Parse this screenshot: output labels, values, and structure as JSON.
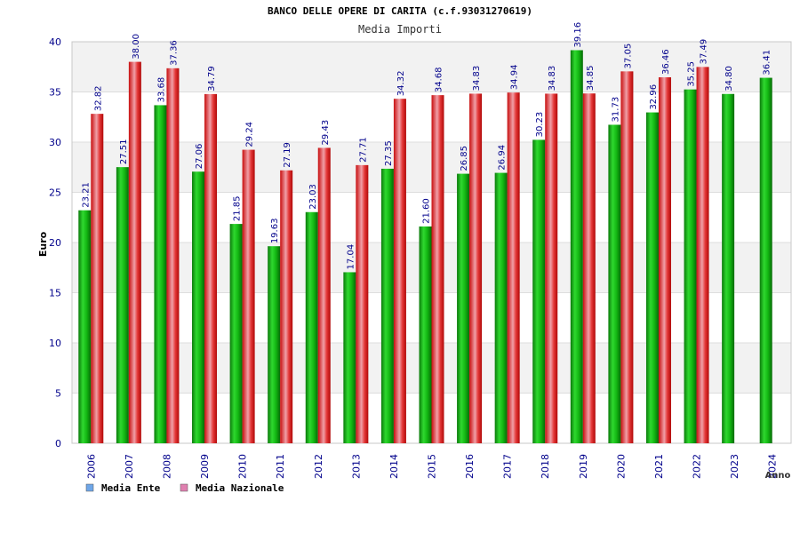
{
  "chart_data": {
    "type": "bar",
    "title": "BANCO DELLE OPERE DI CARITA (c.f.93031270619)",
    "subtitle": "Media Importi",
    "xlabel": "Anno",
    "ylabel": "Euro",
    "ylim": [
      0,
      40
    ],
    "yticks": [
      0,
      5,
      10,
      15,
      20,
      25,
      30,
      35,
      40
    ],
    "categories": [
      "2006",
      "2007",
      "2008",
      "2009",
      "2010",
      "2011",
      "2012",
      "2013",
      "2014",
      "2015",
      "2016",
      "2017",
      "2018",
      "2019",
      "2020",
      "2021",
      "2022",
      "2023",
      "2024"
    ],
    "series": [
      {
        "name": "Media Ente",
        "values": [
          23.21,
          27.51,
          33.68,
          27.06,
          21.85,
          19.63,
          23.03,
          17.04,
          27.35,
          21.6,
          26.85,
          26.94,
          30.23,
          39.16,
          31.73,
          32.96,
          35.25,
          34.8,
          36.41
        ],
        "labels": [
          "23.21",
          "27.51",
          "33.68",
          "27.06",
          "21.85",
          "19.63",
          "23.03",
          "17.04",
          "27.35",
          "21.60",
          "26.85",
          "26.94",
          "30.23",
          "39.16",
          "31.73",
          "32.96",
          "35.25",
          "34.80",
          "36.41"
        ]
      },
      {
        "name": "Media Nazionale",
        "values": [
          32.82,
          38.0,
          37.36,
          34.79,
          29.24,
          27.19,
          29.43,
          27.71,
          34.32,
          34.68,
          34.83,
          34.94,
          34.83,
          34.85,
          37.05,
          36.46,
          37.49,
          null,
          null
        ],
        "labels": [
          "32.82",
          "38.00",
          "37.36",
          "34.79",
          "29.24",
          "27.19",
          "29.43",
          "27.71",
          "34.32",
          "34.68",
          "34.83",
          "34.94",
          "34.83",
          "34.85",
          "37.05",
          "36.46",
          "37.49",
          "",
          ""
        ]
      }
    ],
    "legend": [
      {
        "label": "Media Ente",
        "color": "#6ea6e8"
      },
      {
        "label": "Media Nazionale",
        "color": "#e080b0"
      }
    ],
    "colors": {
      "ente": "#0bb00b",
      "nazionale": "#e01818",
      "axis_text": "#00008b",
      "band": "#f2f2f2"
    },
    "grid": true,
    "legend_position": "bottom-left"
  }
}
